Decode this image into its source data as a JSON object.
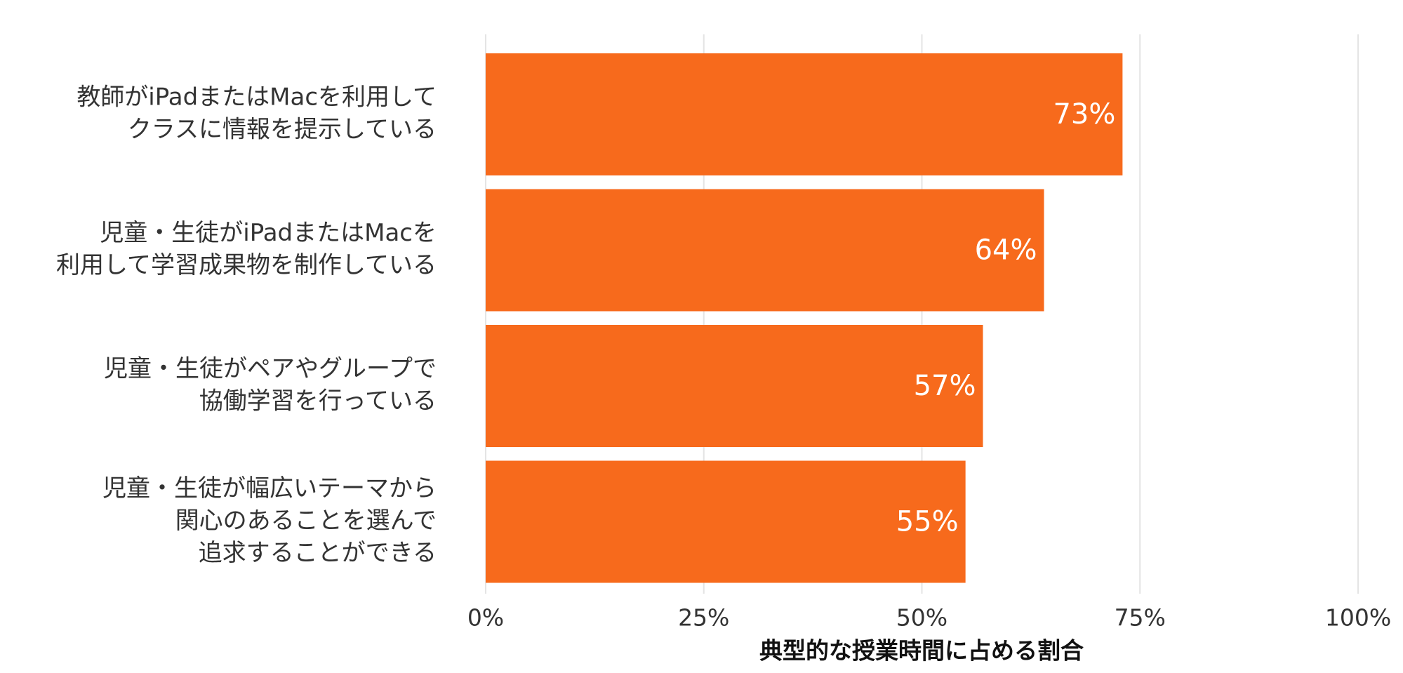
{
  "chart_data": {
    "type": "hbar",
    "categories": [
      [
        "教師がiPadまたはMacを利用して",
        "クラスに情報を提示している"
      ],
      [
        "児童・生徒がiPadまたはMacを",
        "利用して学習成果物を制作している"
      ],
      [
        "児童・生徒がペアやグループで",
        "協働学習を行っている"
      ],
      [
        "児童・生徒が幅広いテーマから",
        "関心のあることを選んで",
        "追求することができる"
      ]
    ],
    "values": [
      73,
      64,
      57,
      55
    ],
    "value_labels": [
      "73%",
      "64%",
      "57%",
      "55%"
    ],
    "color": "#f76a1c",
    "xlabel": "典型的な授業時間に占める割合",
    "xlim": [
      0,
      100
    ],
    "xticks": [
      {
        "value": 0,
        "label": "0%"
      },
      {
        "value": 25,
        "label": "25%"
      },
      {
        "value": 50,
        "label": "50%"
      },
      {
        "value": 75,
        "label": "75%"
      },
      {
        "value": 100,
        "label": "100%"
      }
    ],
    "grid": true
  }
}
